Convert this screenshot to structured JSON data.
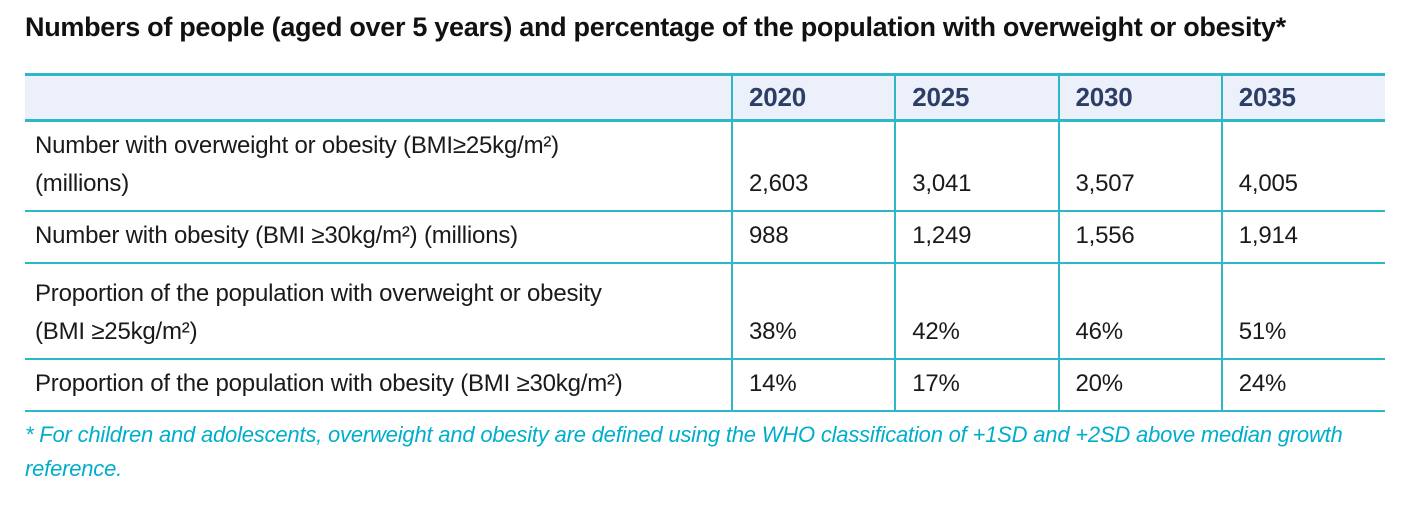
{
  "title": "Numbers of people (aged over 5 years) and percentage of the population with overweight or obesity*",
  "table": {
    "columns": [
      "",
      "2020",
      "2025",
      "2030",
      "2035"
    ],
    "rows": [
      {
        "label": "Number with overweight or obesity (BMI≥25kg/m²)\n(millions)",
        "values": [
          "2,603",
          "3,041",
          "3,507",
          "4,005"
        ]
      },
      {
        "label": "Number with obesity (BMI ≥30kg/m²) (millions)",
        "values": [
          "988",
          "1,249",
          "1,556",
          "1,914"
        ]
      },
      {
        "label": "Proportion of the population with overweight or obesity\n(BMI ≥25kg/m²)",
        "values": [
          "38%",
          "42%",
          "46%",
          "51%"
        ]
      },
      {
        "label": "Proportion of the population with obesity (BMI ≥30kg/m²)",
        "values": [
          "14%",
          "17%",
          "20%",
          "24%"
        ]
      }
    ]
  },
  "footnote": "* For children and adolescents, overweight and obesity are defined using the WHO classification of +1SD and +2SD above median growth\nreference.",
  "colors": {
    "border_teal": "#2eb7c9",
    "header_bg": "#ebf0fa",
    "header_text": "#2d3e66",
    "footnote_text": "#00aecb",
    "body_text": "#1a1a1a"
  },
  "chart_data": {
    "type": "table",
    "title": "Numbers of people (aged over 5 years) and percentage of the population with overweight or obesity*",
    "categories": [
      "2020",
      "2025",
      "2030",
      "2035"
    ],
    "series": [
      {
        "name": "Number with overweight or obesity (BMI≥25kg/m²) (millions)",
        "values": [
          2603,
          3041,
          3507,
          4005
        ]
      },
      {
        "name": "Number with obesity (BMI ≥30kg/m²) (millions)",
        "values": [
          988,
          1249,
          1556,
          1914
        ]
      },
      {
        "name": "Proportion of the population with overweight or obesity (BMI ≥25kg/m²)",
        "values": [
          "38%",
          "42%",
          "46%",
          "51%"
        ]
      },
      {
        "name": "Proportion of the population with obesity (BMI ≥30kg/m²)",
        "values": [
          "14%",
          "17%",
          "20%",
          "24%"
        ]
      }
    ],
    "footnote": "* For children and adolescents, overweight and obesity are defined using the WHO classification of +1SD and +2SD above median growth reference."
  }
}
